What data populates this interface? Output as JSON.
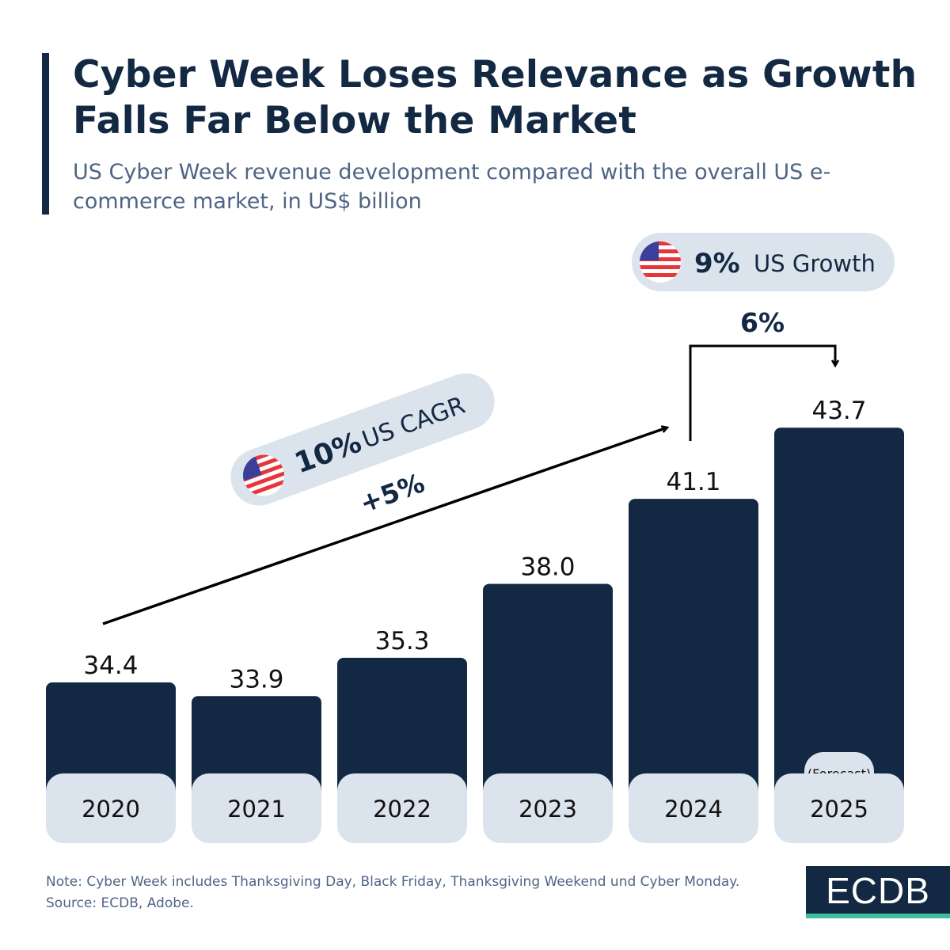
{
  "title": "Cyber Week Loses Relevance as Growth Falls Far Below the Market",
  "subtitle": "US Cyber Week revenue development compared with the overall US e-commerce market, in US$ billion",
  "chart_data": {
    "type": "bar",
    "categories": [
      "2020",
      "2021",
      "2022",
      "2023",
      "2024",
      "2025"
    ],
    "values": [
      34.4,
      33.9,
      35.3,
      38.0,
      41.1,
      43.7
    ],
    "value_labels": [
      "34.4",
      "33.9",
      "35.3",
      "38.0",
      "41.1",
      "43.7"
    ],
    "category_notes": {
      "2025": "(Forecast)"
    },
    "annotations": {
      "cagr_change": "+5%",
      "yoy_change": "6%",
      "us_cagr_value": "10%",
      "us_cagr_label": "US CAGR",
      "us_growth_value": "9%",
      "us_growth_label": "US Growth"
    },
    "colors": {
      "bar": "#132843",
      "label_box": "#dbe3ec",
      "text": "#132843"
    }
  },
  "footer": {
    "note": "Note: Cyber Week includes Thanksgiving Day, Black Friday, Thanksgiving Weekend und Cyber Monday.",
    "source": "Source: ECDB, Adobe.",
    "logo": "ECDB"
  }
}
